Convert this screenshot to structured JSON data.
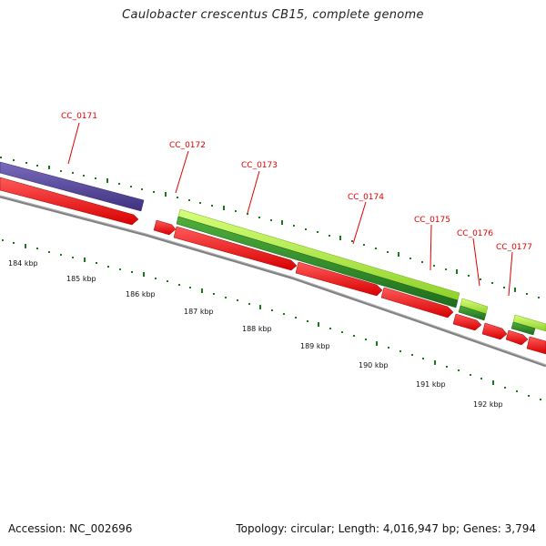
{
  "title": "Caulobacter crescentus CB15, complete genome",
  "footer": {
    "accession": "Accession: NC_002696",
    "stats": "Topology: circular; Length: 4,016,947 bp; Genes: 3,794"
  },
  "gene_labels": [
    "CC_0171",
    "CC_0172",
    "CC_0173",
    "CC_0174",
    "CC_0175",
    "CC_0176",
    "CC_0177"
  ],
  "kbp_labels": [
    "184 kbp",
    "185 kbp",
    "186 kbp",
    "187 kbp",
    "188 kbp",
    "189 kbp",
    "190 kbp",
    "191 kbp",
    "192 kbp"
  ],
  "colors": {
    "cds": "#ff0000",
    "gene_dark": "#2e8b2e",
    "gene_light": "#a8e83c",
    "gene_purple": "#5a4a9a",
    "backbone": "#808080",
    "tick": "#1a7a1a",
    "label": "#e00000"
  }
}
